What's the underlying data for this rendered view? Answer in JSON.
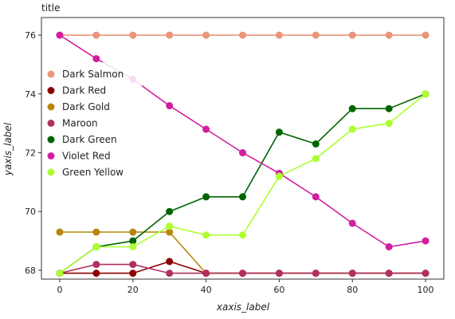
{
  "chart_data": {
    "type": "line",
    "title": "title",
    "xlabel": "xaxis_label",
    "ylabel": "yaxis_label",
    "x": [
      0,
      10,
      20,
      30,
      40,
      50,
      60,
      70,
      80,
      90,
      100
    ],
    "xlim": [
      -5,
      105
    ],
    "ylim": [
      67.7,
      76.6
    ],
    "xticks": [
      0,
      20,
      40,
      60,
      80,
      100
    ],
    "yticks": [
      68,
      70,
      72,
      74,
      76
    ],
    "grid": false,
    "legend_position": "left",
    "series": [
      {
        "name": "Dark Salmon",
        "color": "#e8957a",
        "values": [
          76.0,
          76.0,
          76.0,
          76.0,
          76.0,
          76.0,
          76.0,
          76.0,
          76.0,
          76.0,
          76.0
        ]
      },
      {
        "name": "Dark Red",
        "color": "#8b0000",
        "values": [
          67.9,
          67.9,
          67.9,
          68.3,
          67.9,
          67.9,
          67.9,
          67.9,
          67.9,
          67.9,
          67.9
        ]
      },
      {
        "name": "Dark Gold",
        "color": "#b8860b",
        "values": [
          69.3,
          69.3,
          69.3,
          69.3,
          67.9,
          67.9,
          67.9,
          67.9,
          67.9,
          67.9,
          67.9
        ]
      },
      {
        "name": "Maroon",
        "color": "#b03060",
        "values": [
          67.9,
          68.2,
          68.2,
          67.9,
          67.9,
          67.9,
          67.9,
          67.9,
          67.9,
          67.9,
          67.9
        ]
      },
      {
        "name": "Dark Green",
        "color": "#006400",
        "values": [
          67.9,
          68.8,
          69.0,
          70.0,
          70.5,
          70.5,
          72.7,
          72.3,
          73.5,
          73.5,
          74.0
        ]
      },
      {
        "name": "Violet Red",
        "color": "#d21f9e",
        "values": [
          76.0,
          75.2,
          74.5,
          73.6,
          72.8,
          72.0,
          71.3,
          70.5,
          69.6,
          68.8,
          69.0
        ]
      },
      {
        "name": "Green Yellow",
        "color": "#adff2f",
        "values": [
          67.9,
          68.8,
          68.8,
          69.5,
          69.2,
          69.2,
          71.2,
          71.8,
          72.8,
          73.0,
          74.0
        ]
      }
    ]
  }
}
